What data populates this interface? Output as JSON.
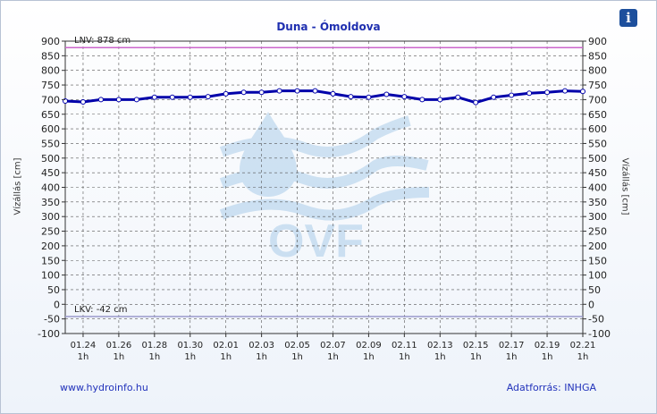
{
  "header": {
    "title": "Duna - Ómoldova",
    "info_icon": "info-icon"
  },
  "footer": {
    "website": "www.hydroinfo.hu",
    "source": "Adatforrás: INHGA"
  },
  "chart_data": {
    "type": "line",
    "title": "Duna - Ómoldova",
    "ylabel": "Vízállás [cm]",
    "y2label": "Vízállás [cm]",
    "ylim": [
      -100,
      900
    ],
    "yticks": [
      -100,
      -50,
      0,
      50,
      100,
      150,
      200,
      250,
      300,
      350,
      400,
      450,
      500,
      550,
      600,
      650,
      700,
      750,
      800,
      850,
      900
    ],
    "x_start": "01.23",
    "x_end": "02.21",
    "xticks": [
      {
        "date": "01.24",
        "sub": "1h"
      },
      {
        "date": "01.26",
        "sub": "1h"
      },
      {
        "date": "01.28",
        "sub": "1h"
      },
      {
        "date": "01.30",
        "sub": "1h"
      },
      {
        "date": "02.01",
        "sub": "1h"
      },
      {
        "date": "02.03",
        "sub": "1h"
      },
      {
        "date": "02.05",
        "sub": "1h"
      },
      {
        "date": "02.07",
        "sub": "1h"
      },
      {
        "date": "02.09",
        "sub": "1h"
      },
      {
        "date": "02.11",
        "sub": "1h"
      },
      {
        "date": "02.13",
        "sub": "1h"
      },
      {
        "date": "02.15",
        "sub": "1h"
      },
      {
        "date": "02.17",
        "sub": "1h"
      },
      {
        "date": "02.19",
        "sub": "1h"
      },
      {
        "date": "02.21",
        "sub": "1h"
      }
    ],
    "grid": true,
    "reference_lines": [
      {
        "label": "LNV: 878 cm",
        "value": 878,
        "color": "#cc66cc"
      },
      {
        "label": "LKV: -42 cm",
        "value": -42,
        "color": "#9999cc"
      }
    ],
    "series": [
      {
        "color": "#0000aa",
        "points": [
          [
            "01.23",
            695
          ],
          [
            "01.24",
            692
          ],
          [
            "01.25",
            700
          ],
          [
            "01.26",
            700
          ],
          [
            "01.27",
            700
          ],
          [
            "01.28",
            708
          ],
          [
            "01.29",
            708
          ],
          [
            "01.30",
            708
          ],
          [
            "01.31",
            710
          ],
          [
            "02.01",
            720
          ],
          [
            "02.02",
            725
          ],
          [
            "02.03",
            725
          ],
          [
            "02.04",
            730
          ],
          [
            "02.05",
            730
          ],
          [
            "02.06",
            730
          ],
          [
            "02.07",
            720
          ],
          [
            "02.08",
            710
          ],
          [
            "02.09",
            708
          ],
          [
            "02.10",
            718
          ],
          [
            "02.11",
            710
          ],
          [
            "02.12",
            700
          ],
          [
            "02.13",
            700
          ],
          [
            "02.14",
            708
          ],
          [
            "02.15",
            690
          ],
          [
            "02.16",
            708
          ],
          [
            "02.17",
            715
          ],
          [
            "02.18",
            722
          ],
          [
            "02.19",
            725
          ],
          [
            "02.20",
            730
          ],
          [
            "02.21",
            728
          ]
        ]
      }
    ],
    "watermark": "OVF"
  }
}
